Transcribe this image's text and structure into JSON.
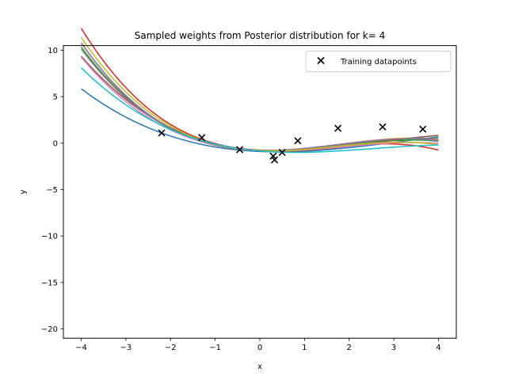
{
  "chart_data": {
    "type": "line",
    "title": "Sampled weights from Posterior distribution for k= 4",
    "xlabel": "x",
    "ylabel": "y",
    "xlim": [
      -4.4,
      4.4
    ],
    "ylim": [
      -21.0,
      10.5
    ],
    "xticks": [
      -4,
      -3,
      -2,
      -1,
      0,
      1,
      2,
      3,
      4
    ],
    "yticks": [
      -20,
      -15,
      -10,
      -5,
      0,
      5,
      10
    ],
    "grid": false,
    "legend": {
      "location": "upper right",
      "entries": [
        "Training datapoints"
      ]
    },
    "series": [
      {
        "color": "#1f77b4",
        "coeffs": [
          -0.9,
          -0.2,
          0.26,
          -0.028
        ]
      },
      {
        "color": "#ff7f0e",
        "coeffs": [
          -0.8,
          -0.1,
          0.4,
          -0.075
        ]
      },
      {
        "color": "#2ca02c",
        "coeffs": [
          -0.8,
          -0.15,
          0.38,
          -0.07
        ]
      },
      {
        "color": "#d62728",
        "coeffs": [
          -0.75,
          -0.2,
          0.41,
          -0.09
        ]
      },
      {
        "color": "#9467bd",
        "coeffs": [
          -0.78,
          -0.1,
          0.395,
          -0.076
        ]
      },
      {
        "color": "#8c564b",
        "coeffs": [
          -0.82,
          -0.3,
          0.37,
          -0.048
        ]
      },
      {
        "color": "#e377c2",
        "coeffs": [
          -0.82,
          -0.2,
          0.34,
          -0.06
        ]
      },
      {
        "color": "#7f7f7f",
        "coeffs": [
          -0.78,
          -0.15,
          0.38,
          -0.066
        ]
      },
      {
        "color": "#bcbd22",
        "coeffs": [
          -0.8,
          -0.2,
          0.4,
          -0.078
        ]
      },
      {
        "color": "#17becf",
        "coeffs": [
          -0.85,
          -0.4,
          0.3,
          -0.04
        ]
      }
    ],
    "training_points": [
      {
        "x": -2.2,
        "y": 1.1
      },
      {
        "x": -1.3,
        "y": 0.6
      },
      {
        "x": -0.45,
        "y": -0.7
      },
      {
        "x": 0.3,
        "y": -1.4
      },
      {
        "x": 0.33,
        "y": -1.8
      },
      {
        "x": 0.5,
        "y": -1.0
      },
      {
        "x": 0.85,
        "y": 0.25
      },
      {
        "x": 1.75,
        "y": 1.6
      },
      {
        "x": 2.75,
        "y": 1.75
      },
      {
        "x": 3.65,
        "y": 1.5
      }
    ],
    "x_range": [
      -4,
      4
    ]
  }
}
